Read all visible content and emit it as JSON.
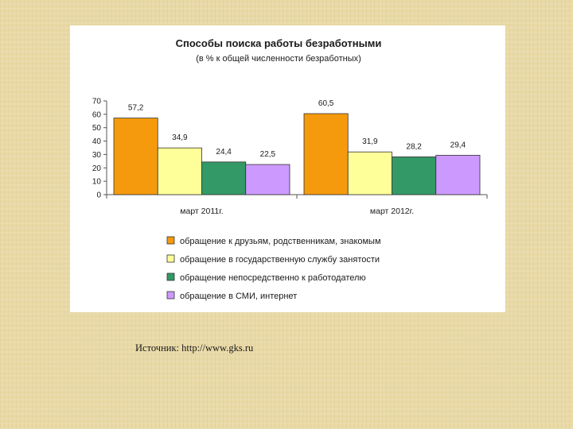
{
  "chart_data": {
    "type": "bar",
    "title": "Способы поиска работы безработными",
    "subtitle": "(в % к общей численности безработных)",
    "categories": [
      "март 2011г.",
      "март 2012г."
    ],
    "series": [
      {
        "name": "обращение к друзьям, родственникам, знакомым",
        "values": [
          57.2,
          60.5
        ],
        "labels": [
          "57,2",
          "60,5"
        ],
        "color": "#f59a0c"
      },
      {
        "name": "обращение в государственную службу занятости",
        "values": [
          34.9,
          31.9
        ],
        "labels": [
          "34,9",
          "31,9"
        ],
        "color": "#ffff99"
      },
      {
        "name": "обращение непосредственно к работодателю",
        "values": [
          24.4,
          28.2
        ],
        "labels": [
          "24,4",
          "28,2"
        ],
        "color": "#339966"
      },
      {
        "name": "обращение в СМИ, интернет",
        "values": [
          22.5,
          29.4
        ],
        "labels": [
          "22,5",
          "29,4"
        ],
        "color": "#cc99ff"
      }
    ],
    "ylim": [
      0,
      70
    ],
    "yticks": [
      "0",
      "10",
      "20",
      "30",
      "40",
      "50",
      "60",
      "70"
    ],
    "grid": false,
    "legend": "bottom"
  },
  "source": "Источник: http://www.gks.ru",
  "colors": {
    "background": "#e9d9a6",
    "panel": "#ffffff",
    "bar_outline": "#333333"
  }
}
